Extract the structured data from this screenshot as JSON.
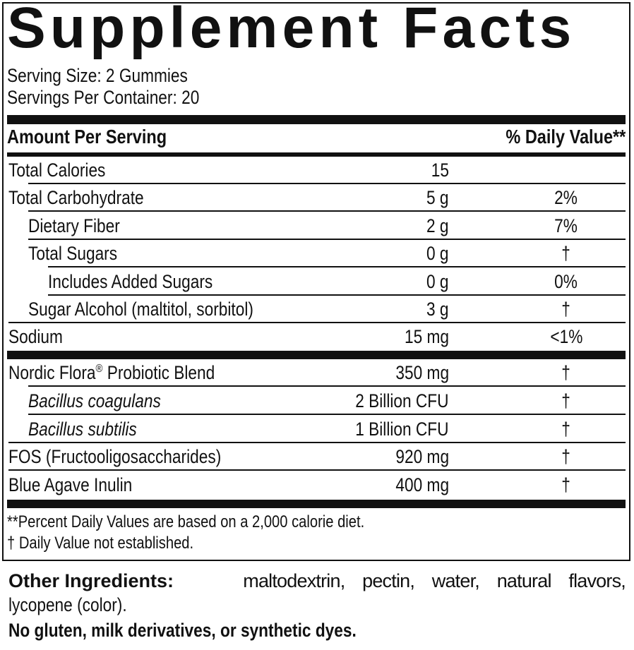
{
  "title": "Supplement Facts",
  "serving_size": "Serving Size: 2 Gummies",
  "servings_per_container": "Servings Per Container: 20",
  "header": {
    "amount": "Amount Per Serving",
    "dv": "% Daily Value**"
  },
  "rows": [
    {
      "name": "Total Calories",
      "amount": "15",
      "dv": ""
    },
    {
      "name": "Total Carbohydrate",
      "amount": "5 g",
      "dv": "2%"
    },
    {
      "name": "Dietary Fiber",
      "amount": "2 g",
      "dv": "7%"
    },
    {
      "name": "Total Sugars",
      "amount": "0 g",
      "dv": "†"
    },
    {
      "name": "Includes Added Sugars",
      "amount": "0 g",
      "dv": "0%"
    },
    {
      "name": "Sugar Alcohol (maltitol, sorbitol)",
      "amount": "3 g",
      "dv": "†"
    },
    {
      "name": "Sodium",
      "amount": "15 mg",
      "dv": "<1%"
    }
  ],
  "blend_rows": [
    {
      "name": "Nordic Flora",
      "reg": "®",
      "name_rest": " Probiotic Blend",
      "amount": "350 mg",
      "dv": "†"
    },
    {
      "name": "Bacillus coagulans",
      "amount": "2 Billion CFU",
      "dv": "†"
    },
    {
      "name": "Bacillus subtilis",
      "amount": "1 Billion CFU",
      "dv": "†"
    },
    {
      "name": "FOS (Fructooligosaccharides)",
      "amount": "920 mg",
      "dv": "†"
    },
    {
      "name": "Blue Agave Inulin",
      "amount": "400 mg",
      "dv": "†"
    }
  ],
  "footnotes": [
    "**Percent Daily Values are based on a 2,000 calorie diet.",
    "† Daily Value not established."
  ],
  "other_ingredients": {
    "label": "Other Ingredients:",
    "line1": "maltodextrin, pectin, water, natural flavors,",
    "line2": "lycopene (color)."
  },
  "allergen": "No gluten, milk derivatives, or synthetic dyes."
}
